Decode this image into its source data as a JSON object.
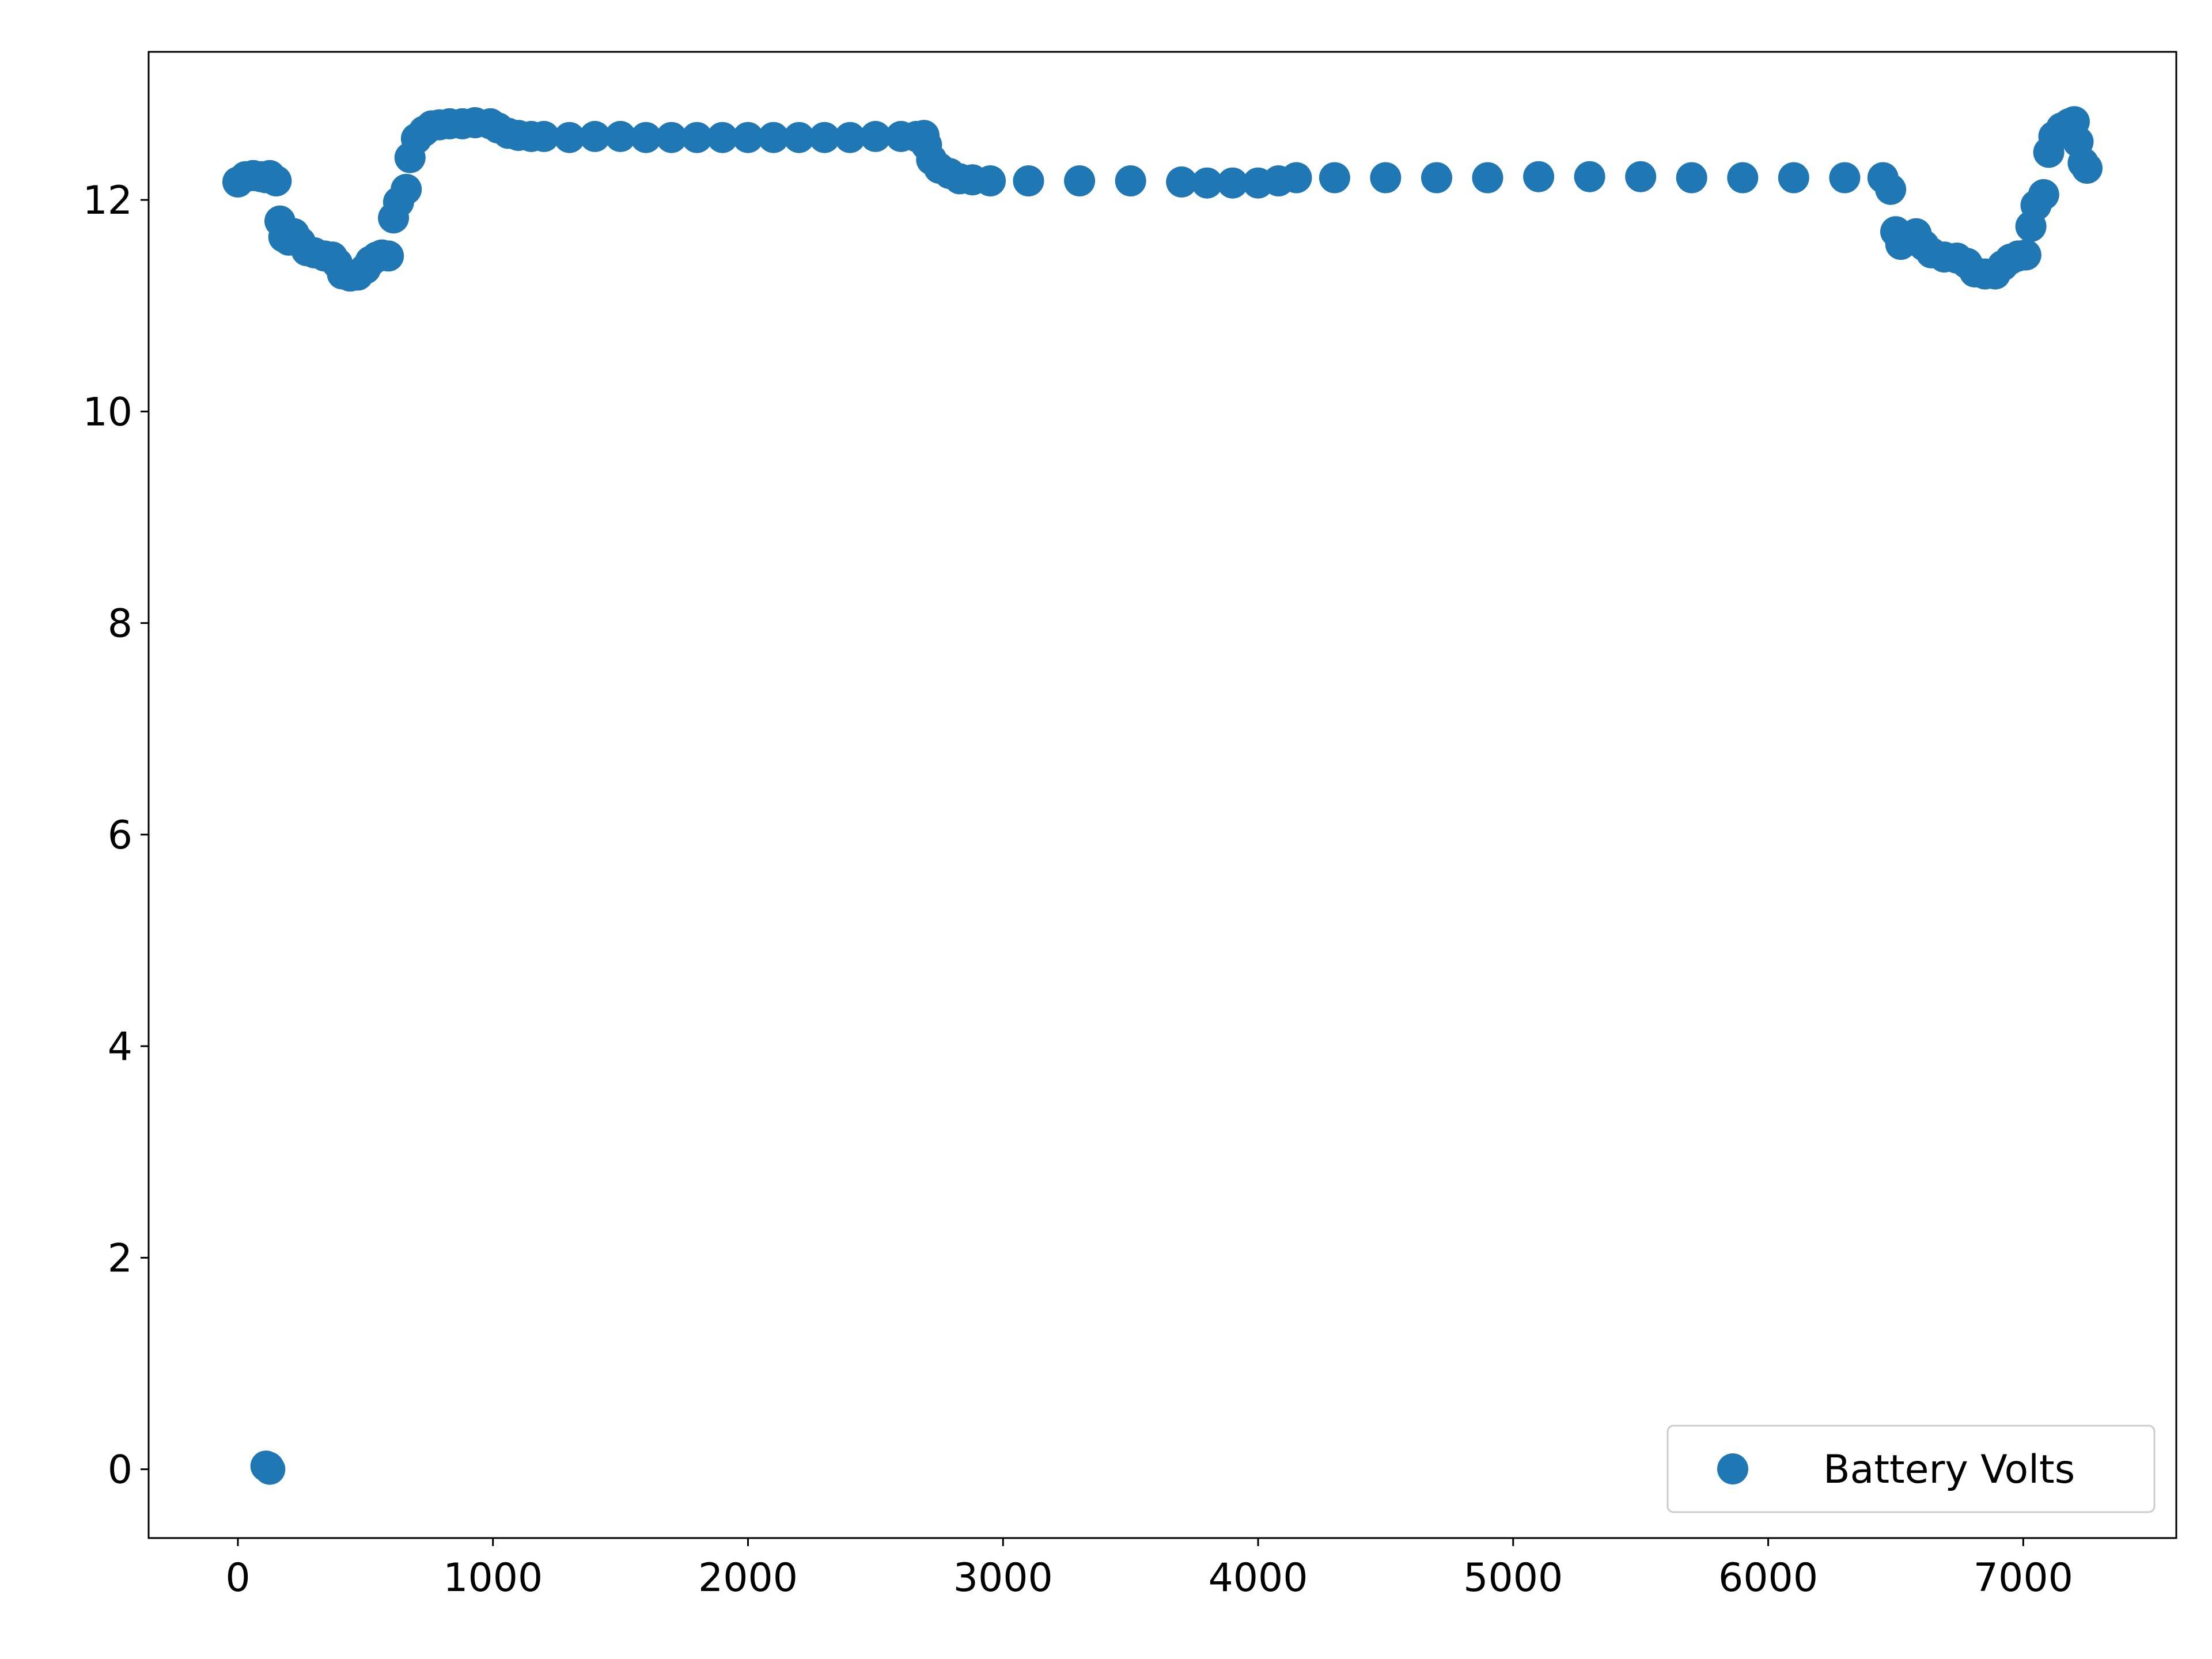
{
  "chart_data": {
    "type": "scatter",
    "title": "",
    "xlabel": "",
    "ylabel": "",
    "xlim": [
      -350,
      7600
    ],
    "ylim": [
      -0.65,
      13.4
    ],
    "xticks": [
      0,
      1000,
      2000,
      3000,
      4000,
      5000,
      6000,
      7000
    ],
    "yticks": [
      0,
      2,
      4,
      6,
      8,
      10,
      12
    ],
    "xtick_labels": [
      "0",
      "1000",
      "2000",
      "3000",
      "4000",
      "5000",
      "6000",
      "7000"
    ],
    "ytick_labels": [
      "0",
      "2",
      "4",
      "6",
      "8",
      "10",
      "12"
    ],
    "grid": false,
    "legend": {
      "location": "lower right",
      "entries": [
        "Battery Volts"
      ]
    },
    "series": [
      {
        "name": "Battery Volts",
        "color": "#1f77b4",
        "marker": "circle",
        "points": [
          [
            0,
            12.17
          ],
          [
            30,
            12.22
          ],
          [
            60,
            12.23
          ],
          [
            90,
            12.22
          ],
          [
            110,
            12.21
          ],
          [
            125,
            12.23
          ],
          [
            150,
            12.18
          ],
          [
            165,
            11.8
          ],
          [
            180,
            11.65
          ],
          [
            200,
            11.62
          ],
          [
            220,
            11.68
          ],
          [
            245,
            11.6
          ],
          [
            270,
            11.52
          ],
          [
            300,
            11.5
          ],
          [
            340,
            11.47
          ],
          [
            370,
            11.46
          ],
          [
            390,
            11.4
          ],
          [
            410,
            11.3
          ],
          [
            440,
            11.28
          ],
          [
            470,
            11.29
          ],
          [
            500,
            11.35
          ],
          [
            520,
            11.42
          ],
          [
            545,
            11.46
          ],
          [
            565,
            11.48
          ],
          [
            590,
            11.47
          ],
          [
            610,
            11.83
          ],
          [
            630,
            11.98
          ],
          [
            660,
            12.1
          ],
          [
            675,
            12.4
          ],
          [
            700,
            12.58
          ],
          [
            730,
            12.65
          ],
          [
            760,
            12.7
          ],
          [
            790,
            12.71
          ],
          [
            830,
            12.72
          ],
          [
            880,
            12.72
          ],
          [
            930,
            12.73
          ],
          [
            990,
            12.72
          ],
          [
            1020,
            12.68
          ],
          [
            1060,
            12.63
          ],
          [
            1100,
            12.61
          ],
          [
            1150,
            12.6
          ],
          [
            1200,
            12.6
          ],
          [
            1300,
            12.59
          ],
          [
            1400,
            12.6
          ],
          [
            1500,
            12.6
          ],
          [
            1600,
            12.59
          ],
          [
            1700,
            12.59
          ],
          [
            1800,
            12.59
          ],
          [
            1900,
            12.59
          ],
          [
            2000,
            12.59
          ],
          [
            2100,
            12.59
          ],
          [
            2200,
            12.59
          ],
          [
            2300,
            12.59
          ],
          [
            2400,
            12.59
          ],
          [
            2500,
            12.6
          ],
          [
            2600,
            12.6
          ],
          [
            2660,
            12.6
          ],
          [
            2690,
            12.61
          ],
          [
            2700,
            12.52
          ],
          [
            2720,
            12.38
          ],
          [
            2750,
            12.3
          ],
          [
            2790,
            12.25
          ],
          [
            2830,
            12.2
          ],
          [
            2880,
            12.19
          ],
          [
            2950,
            12.18
          ],
          [
            3100,
            12.18
          ],
          [
            3300,
            12.18
          ],
          [
            3500,
            12.18
          ],
          [
            3700,
            12.17
          ],
          [
            3800,
            12.16
          ],
          [
            3900,
            12.16
          ],
          [
            4000,
            12.16
          ],
          [
            4080,
            12.18
          ],
          [
            4150,
            12.21
          ],
          [
            4300,
            12.21
          ],
          [
            4500,
            12.21
          ],
          [
            4700,
            12.21
          ],
          [
            4900,
            12.21
          ],
          [
            5100,
            12.22
          ],
          [
            5300,
            12.22
          ],
          [
            5500,
            12.22
          ],
          [
            5700,
            12.21
          ],
          [
            5900,
            12.21
          ],
          [
            6100,
            12.21
          ],
          [
            6300,
            12.21
          ],
          [
            6450,
            12.21
          ],
          [
            6480,
            12.1
          ],
          [
            6500,
            11.7
          ],
          [
            6520,
            11.58
          ],
          [
            6550,
            11.62
          ],
          [
            6580,
            11.68
          ],
          [
            6610,
            11.57
          ],
          [
            6640,
            11.5
          ],
          [
            6690,
            11.46
          ],
          [
            6740,
            11.45
          ],
          [
            6780,
            11.4
          ],
          [
            6810,
            11.32
          ],
          [
            6850,
            11.3
          ],
          [
            6890,
            11.3
          ],
          [
            6920,
            11.38
          ],
          [
            6950,
            11.44
          ],
          [
            6980,
            11.47
          ],
          [
            7010,
            11.48
          ],
          [
            7030,
            11.75
          ],
          [
            7050,
            11.95
          ],
          [
            7080,
            12.05
          ],
          [
            7100,
            12.45
          ],
          [
            7120,
            12.6
          ],
          [
            7150,
            12.68
          ],
          [
            7180,
            12.72
          ],
          [
            7200,
            12.74
          ],
          [
            7215,
            12.55
          ],
          [
            7235,
            12.35
          ],
          [
            7250,
            12.3
          ],
          [
            110,
            0.03
          ],
          [
            120,
            0.02
          ],
          [
            125,
            0.0
          ]
        ]
      }
    ]
  }
}
